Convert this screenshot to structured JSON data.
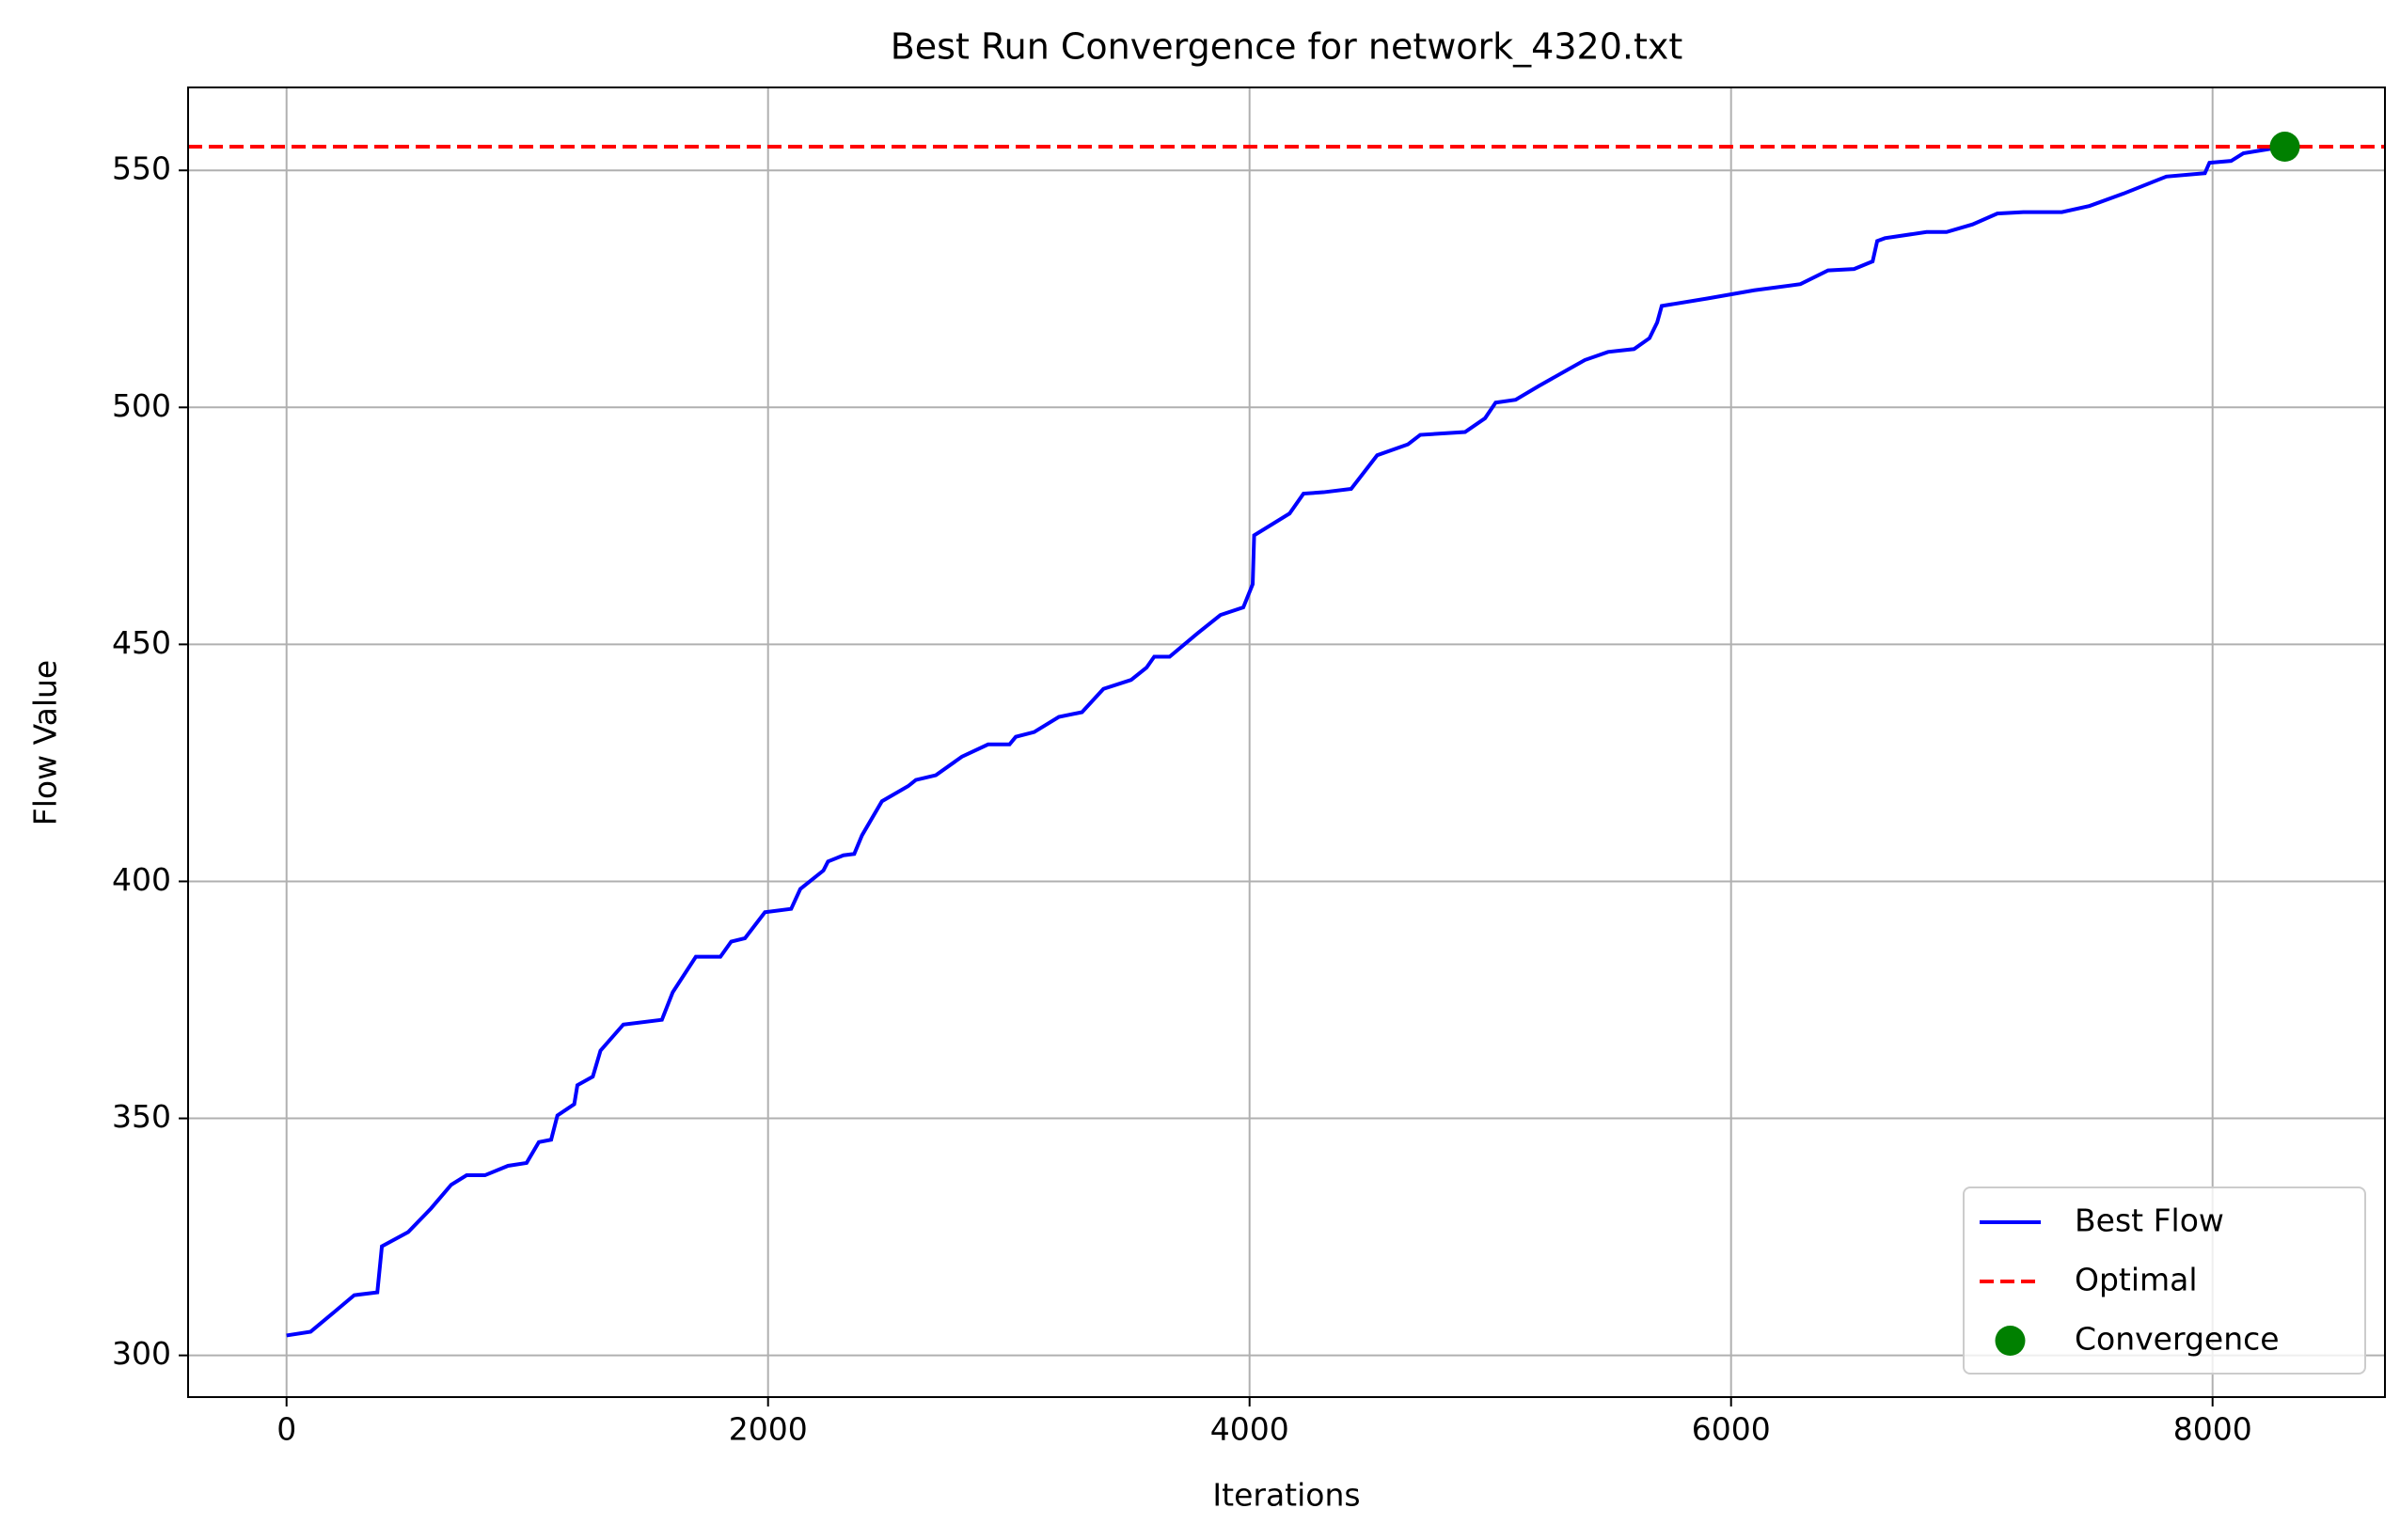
{
  "chart_data": {
    "type": "line",
    "title": "Best Run Convergence for network_4320.txt",
    "x_label": "Iterations",
    "y_label": "Flow Value",
    "x": [
      0,
      100,
      204,
      281,
      377,
      396,
      505,
      600,
      684,
      748,
      824,
      920,
      997,
      1048,
      1099,
      1125,
      1195,
      1208,
      1272,
      1304,
      1399,
      1559,
      1604,
      1700,
      1802,
      1847,
      1904,
      1987,
      2096,
      2134,
      2230,
      2249,
      2313,
      2358,
      2390,
      2473,
      2582,
      2614,
      2697,
      2805,
      2914,
      3003,
      3029,
      3105,
      3208,
      3304,
      3393,
      3508,
      3572,
      3604,
      3668,
      3783,
      3879,
      3974,
      4013,
      4019,
      4166,
      4224,
      4307,
      4422,
      4530,
      4658,
      4709,
      4895,
      4978,
      5022,
      5105,
      5201,
      5316,
      5393,
      5489,
      5597,
      5661,
      5693,
      5712,
      5904,
      6096,
      6288,
      6403,
      6511,
      6588,
      6607,
      6639,
      6812,
      6895,
      7003,
      7106,
      7214,
      7374,
      7489,
      7630,
      7808,
      7968,
      7987,
      8077,
      8128,
      8281
    ],
    "series": [
      {
        "name": "Best Flow",
        "color": "#0000ff",
        "values": [
          304.2,
          305,
          309.4,
          312.7,
          313.3,
          323,
          326,
          331,
          336,
          338,
          338,
          340,
          340.6,
          345,
          345.5,
          350.6,
          353,
          357,
          358.8,
          364.3,
          369.8,
          370.8,
          376.6,
          384.1,
          384.1,
          387.3,
          388,
          393.5,
          394.2,
          398.4,
          402.3,
          404.2,
          405.5,
          405.8,
          409.7,
          416.9,
          420.1,
          421.4,
          422.4,
          426.3,
          428.9,
          428.9,
          430.5,
          431.5,
          434.7,
          435.7,
          440.6,
          442.5,
          445.1,
          447.4,
          447.4,
          452.3,
          456.2,
          457.8,
          462.7,
          473,
          477.6,
          481.8,
          482.1,
          482.8,
          489.9,
          492.2,
          494.2,
          494.8,
          497.7,
          501,
          501.6,
          504.5,
          507.8,
          510,
          511.7,
          512.3,
          514.6,
          517.9,
          521.4,
          523,
          524.7,
          526,
          528.9,
          529.2,
          530.8,
          535.1,
          535.7,
          537,
          537,
          538.6,
          540.9,
          541.2,
          541.2,
          542.5,
          545.1,
          548.7,
          549.4,
          551.6,
          552,
          553.6,
          554.9
        ]
      }
    ],
    "hlines": [
      {
        "name": "Optimal",
        "value": 555,
        "color": "#ff0000"
      }
    ],
    "points": [
      {
        "name": "Convergence",
        "x": 8300,
        "y": 555,
        "color": "#008000"
      }
    ],
    "xlim": [
      -409,
      8716
    ],
    "ylim": [
      291.2,
      567.5
    ],
    "xticks": [
      0,
      2000,
      4000,
      6000,
      8000
    ],
    "yticks": [
      300,
      350,
      400,
      450,
      500,
      550
    ],
    "grid": true,
    "legend": "lower right"
  }
}
